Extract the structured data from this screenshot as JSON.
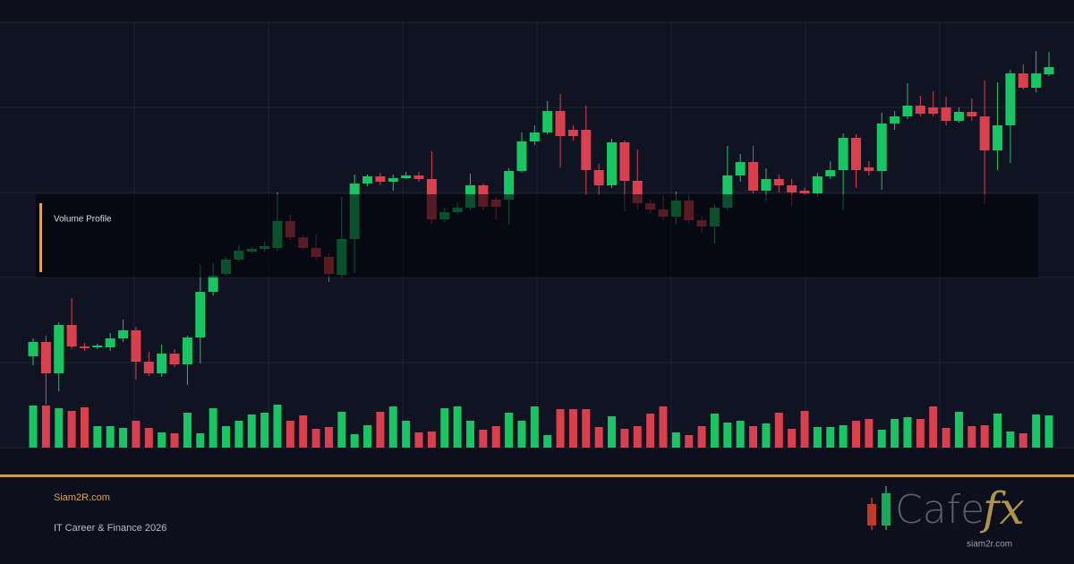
{
  "chart_data": {
    "type": "candlestick",
    "panel_label": "Volume Profile",
    "open": [
      102,
      118,
      83,
      137,
      113,
      112,
      112,
      122,
      131,
      96,
      83,
      105,
      93,
      123,
      174,
      194,
      210,
      219,
      222,
      223,
      253,
      235,
      223,
      213,
      193,
      233,
      295,
      303,
      297,
      301,
      304,
      300,
      255,
      263,
      268,
      293,
      277,
      277,
      309,
      342,
      352,
      376,
      355,
      355,
      310,
      293,
      341,
      298,
      273,
      266,
      258,
      276,
      254,
      247,
      268,
      304,
      319,
      287,
      300,
      293,
      287,
      284,
      303,
      310,
      346,
      313,
      309,
      362,
      370,
      382,
      380,
      380,
      365,
      375,
      370,
      332,
      360,
      418,
      402,
      417
    ],
    "high": [
      122,
      125,
      140,
      167,
      117,
      116,
      128,
      143,
      135,
      107,
      115,
      110,
      125,
      205,
      206,
      213,
      226,
      224,
      230,
      285,
      260,
      237,
      238,
      217,
      280,
      305,
      305,
      307,
      305,
      308,
      308,
      331,
      268,
      274,
      306,
      295,
      280,
      312,
      352,
      360,
      387,
      395,
      360,
      382,
      317,
      345,
      343,
      333,
      277,
      282,
      286,
      282,
      258,
      272,
      337,
      328,
      337,
      312,
      305,
      300,
      290,
      307,
      320,
      351,
      350,
      320,
      374,
      376,
      407,
      393,
      398,
      392,
      380,
      390,
      410,
      408,
      422,
      428,
      443,
      442
    ],
    "low": [
      92,
      48,
      63,
      110,
      108,
      110,
      108,
      118,
      76,
      80,
      79,
      90,
      70,
      94,
      170,
      192,
      208,
      217,
      219,
      220,
      232,
      221,
      210,
      185,
      190,
      195,
      292,
      293,
      287,
      300,
      297,
      250,
      252,
      260,
      265,
      265,
      255,
      249,
      307,
      338,
      350,
      313,
      343,
      282,
      282,
      290,
      264,
      266,
      262,
      254,
      250,
      250,
      240,
      228,
      265,
      297,
      284,
      275,
      285,
      270,
      282,
      280,
      300,
      266,
      290,
      304,
      288,
      355,
      367,
      370,
      370,
      360,
      363,
      365,
      272,
      310,
      318,
      400,
      397,
      415
    ],
    "close": [
      118,
      83,
      137,
      113,
      111,
      114,
      122,
      131,
      96,
      83,
      105,
      93,
      123,
      174,
      192,
      210,
      220,
      222,
      225,
      253,
      235,
      223,
      213,
      194,
      233,
      295,
      303,
      297,
      301,
      304,
      300,
      255,
      263,
      268,
      293,
      269,
      269,
      309,
      342,
      352,
      376,
      348,
      348,
      310,
      293,
      341,
      298,
      273,
      266,
      258,
      276,
      254,
      247,
      268,
      304,
      319,
      287,
      300,
      293,
      285,
      284,
      303,
      310,
      346,
      310,
      309,
      362,
      370,
      382,
      373,
      373,
      365,
      375,
      370,
      332,
      360,
      418,
      402,
      418,
      425
    ],
    "volume": [
      47,
      47,
      44,
      41,
      45,
      24,
      24,
      22,
      30,
      22,
      17,
      16,
      39,
      16,
      44,
      24,
      30,
      37,
      39,
      48,
      30,
      36,
      21,
      23,
      40,
      15,
      25,
      40,
      46,
      30,
      17,
      18,
      44,
      46,
      30,
      20,
      24,
      39,
      30,
      46,
      14,
      43,
      43,
      43,
      23,
      35,
      21,
      24,
      38,
      46,
      17,
      14,
      24,
      38,
      28,
      30,
      24,
      27,
      39,
      21,
      41,
      23,
      23,
      25,
      30,
      32,
      20,
      32,
      34,
      32,
      46,
      22,
      40,
      24,
      25,
      38,
      18,
      16,
      37,
      36
    ],
    "up_color": "#19c463",
    "down_color": "#d9404d",
    "ylim": [
      0,
      475
    ],
    "yticks": [
      0,
      95,
      190,
      285,
      380,
      475
    ],
    "volume_ylim": [
      0,
      100
    ],
    "grid": true
  },
  "footer": {
    "site": "Siam2R.com",
    "tagline": "IT Career & Finance 2026"
  },
  "logo": {
    "word": "Cafe",
    "accent": "fx",
    "url": "siam2r.com"
  }
}
